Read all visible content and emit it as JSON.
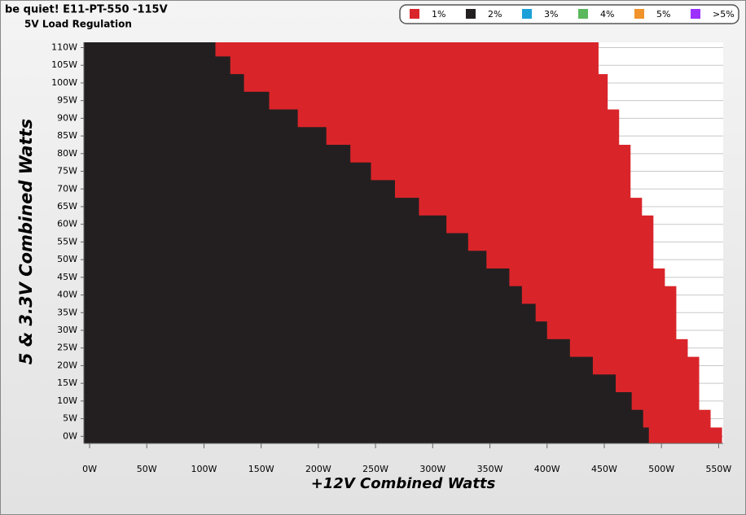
{
  "chart_data": {
    "type": "region",
    "title": "be quiet! E11-PT-550 -115V",
    "subtitle": "5V Load Regulation",
    "x_label": "+12V Combined Watts",
    "y_label": "5 & 3.3V Combined Watts",
    "categories": [
      0,
      5,
      10,
      15,
      20,
      25,
      30,
      35,
      40,
      45,
      50,
      55,
      60,
      65,
      70,
      75,
      80,
      85,
      90,
      95,
      100,
      105,
      110
    ],
    "series": [
      {
        "name": "1%",
        "color": "#d9252a",
        "values": [
          553,
          543,
          533,
          533,
          533,
          523,
          513,
          513,
          513,
          503,
          493,
          493,
          493,
          483,
          473,
          473,
          473,
          463,
          463,
          453,
          453,
          445,
          445
        ]
      },
      {
        "name": "2%",
        "color": "#231f20",
        "values": [
          489,
          484,
          474,
          460,
          440,
          420,
          400,
          390,
          378,
          367,
          347,
          331,
          312,
          288,
          267,
          246,
          228,
          207,
          182,
          157,
          135,
          123,
          110
        ]
      },
      {
        "name": "3%",
        "color": "#1ba1d8",
        "values": [
          null,
          null,
          null,
          null,
          null,
          null,
          null,
          null,
          null,
          null,
          null,
          null,
          null,
          null,
          null,
          null,
          null,
          null,
          null,
          null,
          null,
          null,
          null
        ]
      },
      {
        "name": "4%",
        "color": "#5cb85c",
        "values": [
          null,
          null,
          null,
          null,
          null,
          null,
          null,
          null,
          null,
          null,
          null,
          null,
          null,
          null,
          null,
          null,
          null,
          null,
          null,
          null,
          null,
          null,
          null
        ]
      },
      {
        "name": "5%",
        "color": "#f0932b",
        "values": [
          null,
          null,
          null,
          null,
          null,
          null,
          null,
          null,
          null,
          null,
          null,
          null,
          null,
          null,
          null,
          null,
          null,
          null,
          null,
          null,
          null,
          null,
          null
        ]
      },
      {
        "name": ">5%",
        "color": "#9b30ff",
        "values": [
          null,
          null,
          null,
          null,
          null,
          null,
          null,
          null,
          null,
          null,
          null,
          null,
          null,
          null,
          null,
          null,
          null,
          null,
          null,
          null,
          null,
          null,
          null
        ]
      }
    ],
    "xlim": [
      -5,
      554
    ],
    "ylim": [
      -2,
      111.5
    ],
    "xticks": [
      {
        "value": 0,
        "label": "0W"
      },
      {
        "value": 50,
        "label": "50W"
      },
      {
        "value": 100,
        "label": "100W"
      },
      {
        "value": 150,
        "label": "150W"
      },
      {
        "value": 200,
        "label": "200W"
      },
      {
        "value": 250,
        "label": "250W"
      },
      {
        "value": 300,
        "label": "300W"
      },
      {
        "value": 350,
        "label": "350W"
      },
      {
        "value": 400,
        "label": "400W"
      },
      {
        "value": 450,
        "label": "450W"
      },
      {
        "value": 500,
        "label": "500W"
      },
      {
        "value": 550,
        "label": "550W"
      }
    ],
    "yticks": [
      {
        "value": 0,
        "label": "0W"
      },
      {
        "value": 5,
        "label": "5W"
      },
      {
        "value": 10,
        "label": "10W"
      },
      {
        "value": 15,
        "label": "15W"
      },
      {
        "value": 20,
        "label": "20W"
      },
      {
        "value": 25,
        "label": "25W"
      },
      {
        "value": 30,
        "label": "30W"
      },
      {
        "value": 35,
        "label": "35W"
      },
      {
        "value": 40,
        "label": "40W"
      },
      {
        "value": 45,
        "label": "45W"
      },
      {
        "value": 50,
        "label": "50W"
      },
      {
        "value": 55,
        "label": "55W"
      },
      {
        "value": 60,
        "label": "60W"
      },
      {
        "value": 65,
        "label": "65W"
      },
      {
        "value": 70,
        "label": "70W"
      },
      {
        "value": 75,
        "label": "75W"
      },
      {
        "value": 80,
        "label": "80W"
      },
      {
        "value": 85,
        "label": "85W"
      },
      {
        "value": 90,
        "label": "90W"
      },
      {
        "value": 95,
        "label": "95W"
      },
      {
        "value": 100,
        "label": "100W"
      },
      {
        "value": 105,
        "label": "105W"
      },
      {
        "value": 110,
        "label": "110W"
      }
    ],
    "grid": true
  }
}
